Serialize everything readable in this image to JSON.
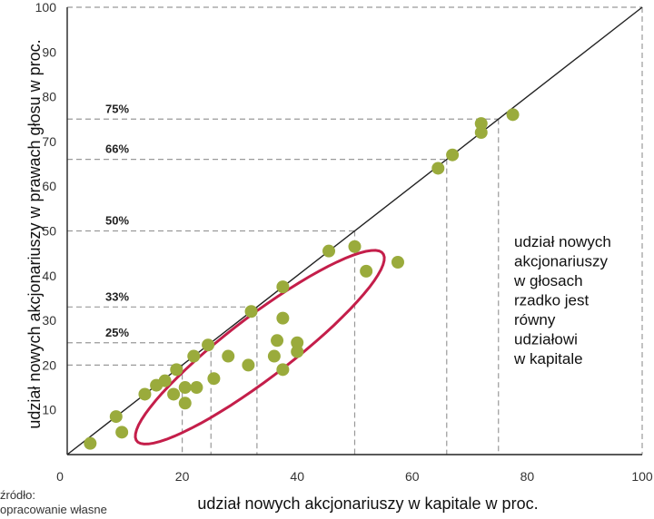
{
  "chart_data": {
    "type": "scatter",
    "xlabel": "udział nowych akcjonariuszy w kapitale w proc.",
    "ylabel": "udział nowych akcjonariuszy w prawach głosu w proc.",
    "xlim": [
      0,
      100
    ],
    "ylim": [
      0,
      100
    ],
    "x_ticks": [
      "0",
      "20",
      "40",
      "60",
      "80",
      "100"
    ],
    "y_ticks": [
      "10",
      "20",
      "30",
      "40",
      "50",
      "60",
      "70",
      "80",
      "90",
      "100"
    ],
    "grid": false,
    "diagonal_line": true,
    "thresholds": [
      {
        "label": "75%",
        "value": 75
      },
      {
        "label": "66%",
        "value": 66
      },
      {
        "label": "50%",
        "value": 50
      },
      {
        "label": "33%",
        "value": 33
      },
      {
        "label": "25%",
        "value": 25
      },
      {
        "label": "",
        "value": 20
      }
    ],
    "annotation": [
      "udział nowych",
      "akcjonariuszy",
      "w głosach",
      "rzadko jest",
      "równy",
      "udziałowi",
      "w kapitale"
    ],
    "source": [
      "źródło:",
      "opracowanie własne"
    ],
    "colors": {
      "points": "#9aab3c",
      "ellipse": "#c41e4a",
      "dashed": "#999999",
      "diagonal": "#222222"
    },
    "points": [
      {
        "x": 4,
        "y": 2.5
      },
      {
        "x": 8.5,
        "y": 8.5
      },
      {
        "x": 9.5,
        "y": 5
      },
      {
        "x": 13.5,
        "y": 13.5
      },
      {
        "x": 15.5,
        "y": 15.5
      },
      {
        "x": 17,
        "y": 16.5
      },
      {
        "x": 18.5,
        "y": 13.5
      },
      {
        "x": 19,
        "y": 19
      },
      {
        "x": 20.5,
        "y": 11.5
      },
      {
        "x": 20.5,
        "y": 15
      },
      {
        "x": 22,
        "y": 22
      },
      {
        "x": 22.5,
        "y": 15
      },
      {
        "x": 24.5,
        "y": 24.5
      },
      {
        "x": 25.5,
        "y": 17
      },
      {
        "x": 28,
        "y": 22
      },
      {
        "x": 31.5,
        "y": 20
      },
      {
        "x": 32,
        "y": 32
      },
      {
        "x": 36,
        "y": 22
      },
      {
        "x": 36.5,
        "y": 25.5
      },
      {
        "x": 37.5,
        "y": 30.5
      },
      {
        "x": 37.5,
        "y": 19
      },
      {
        "x": 37.5,
        "y": 37.5
      },
      {
        "x": 40,
        "y": 25
      },
      {
        "x": 40,
        "y": 23
      },
      {
        "x": 45.5,
        "y": 45.5
      },
      {
        "x": 50,
        "y": 46.5
      },
      {
        "x": 52,
        "y": 41
      },
      {
        "x": 57.5,
        "y": 43
      },
      {
        "x": 64.5,
        "y": 64
      },
      {
        "x": 67,
        "y": 67
      },
      {
        "x": 72,
        "y": 74
      },
      {
        "x": 72,
        "y": 72
      },
      {
        "x": 77.5,
        "y": 76
      }
    ]
  }
}
